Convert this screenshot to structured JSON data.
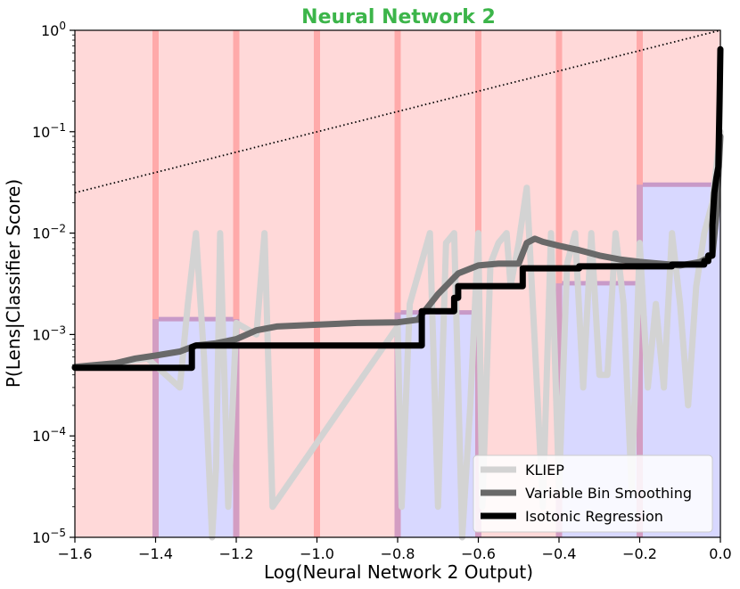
{
  "chart_data": {
    "type": "line",
    "title": "Neural Network 2",
    "xlabel": "Log(Neural Network 2 Output)",
    "ylabel": "P(Lens|Classifier Score)",
    "yscale": "log",
    "xlim": [
      -1.6,
      0.0
    ],
    "ylim": [
      1e-05,
      1
    ],
    "grid": false,
    "legend_position": "bottom-right",
    "x_ticks": [
      {
        "value": -1.6,
        "label": "−1.6"
      },
      {
        "value": -1.4,
        "label": "−1.4"
      },
      {
        "value": -1.2,
        "label": "−1.2"
      },
      {
        "value": -1.0,
        "label": "−1.0"
      },
      {
        "value": -0.8,
        "label": "−0.8"
      },
      {
        "value": -0.6,
        "label": "−0.6"
      },
      {
        "value": -0.4,
        "label": "−0.4"
      },
      {
        "value": -0.2,
        "label": "−0.2"
      },
      {
        "value": 0.0,
        "label": "0.0"
      }
    ],
    "y_ticks": [
      {
        "value": 1,
        "base": "10",
        "exp": "0"
      },
      {
        "value": 0.1,
        "base": "10",
        "exp": "−1"
      },
      {
        "value": 0.01,
        "base": "10",
        "exp": "−2"
      },
      {
        "value": 0.001,
        "base": "10",
        "exp": "−3"
      },
      {
        "value": 0.0001,
        "base": "10",
        "exp": "−4"
      },
      {
        "value": 1e-05,
        "base": "10",
        "exp": "−5"
      }
    ],
    "colors": {
      "title": "#3cb54a",
      "background_red": "#ffd9d9",
      "bin_edge_red": "#ffaaaa",
      "bin_blue": "#d8d8ff",
      "bin_top": "#c89ac8",
      "kliep": "#d3d3d3",
      "variable_bin": "#696969",
      "isotonic": "#000000",
      "reference": "#000000"
    },
    "histogram_bins": [
      {
        "x0": -1.6,
        "x1": -1.4,
        "value": 0
      },
      {
        "x0": -1.4,
        "x1": -1.2,
        "value": 0.00142
      },
      {
        "x0": -1.2,
        "x1": -1.0,
        "value": 0
      },
      {
        "x0": -1.0,
        "x1": -0.8,
        "value": 0
      },
      {
        "x0": -0.8,
        "x1": -0.6,
        "value": 0.00165
      },
      {
        "x0": -0.6,
        "x1": -0.4,
        "value": 0
      },
      {
        "x0": -0.4,
        "x1": -0.2,
        "value": 0.0032
      },
      {
        "x0": -0.2,
        "x1": 0.0,
        "value": 0.03
      }
    ],
    "reference_line": {
      "style": "dotted",
      "x": [
        -1.6,
        0.0
      ],
      "y": [
        0.025,
        1.0
      ]
    },
    "series": [
      {
        "name": "KLIEP",
        "points": [
          [
            -1.6,
            0.00048
          ],
          [
            -1.5,
            0.00052
          ],
          [
            -1.42,
            0.00058
          ],
          [
            -1.34,
            0.0003
          ],
          [
            -1.32,
            0.002
          ],
          [
            -1.3,
            0.01
          ],
          [
            -1.28,
            0.0006
          ],
          [
            -1.26,
            1e-05
          ],
          [
            -1.25,
            5e-05
          ],
          [
            -1.24,
            0.01
          ],
          [
            -1.22,
            2e-05
          ],
          [
            -1.2,
            0.0013
          ],
          [
            -1.15,
            0.001
          ],
          [
            -1.13,
            0.01
          ],
          [
            -1.11,
            2e-05
          ],
          [
            -0.8,
            0.0012
          ],
          [
            -0.79,
            2e-05
          ],
          [
            -0.77,
            0.002
          ],
          [
            -0.72,
            0.01
          ],
          [
            -0.7,
            2e-05
          ],
          [
            -0.68,
            0.008
          ],
          [
            -0.66,
            0.01
          ],
          [
            -0.64,
            1e-05
          ],
          [
            -0.62,
            0.0002
          ],
          [
            -0.6,
            0.01
          ],
          [
            -0.59,
            2e-05
          ],
          [
            -0.57,
            0.005
          ],
          [
            -0.55,
            0.008
          ],
          [
            -0.53,
            0.01
          ],
          [
            -0.52,
            0.003
          ],
          [
            -0.5,
            0.008
          ],
          [
            -0.48,
            0.028
          ],
          [
            -0.46,
            0.0008
          ],
          [
            -0.44,
            2e-05
          ],
          [
            -0.42,
            0.01
          ],
          [
            -0.4,
            3e-05
          ],
          [
            -0.38,
            0.005
          ],
          [
            -0.36,
            0.01
          ],
          [
            -0.34,
            0.0003
          ],
          [
            -0.32,
            0.01
          ],
          [
            -0.3,
            0.0004
          ],
          [
            -0.28,
            0.0004
          ],
          [
            -0.26,
            0.01
          ],
          [
            -0.24,
            0.002
          ],
          [
            -0.22,
            3e-05
          ],
          [
            -0.2,
            0.008
          ],
          [
            -0.18,
            0.0003
          ],
          [
            -0.16,
            0.002
          ],
          [
            -0.14,
            0.0003
          ],
          [
            -0.12,
            0.01
          ],
          [
            -0.1,
            0.002
          ],
          [
            -0.08,
            0.0002
          ],
          [
            -0.06,
            0.003
          ],
          [
            -0.04,
            0.01
          ],
          [
            -0.02,
            0.02
          ],
          [
            0.0,
            0.1
          ]
        ]
      },
      {
        "name": "Variable Bin Smoothing",
        "points": [
          [
            -1.6,
            0.00048
          ],
          [
            -1.5,
            0.00052
          ],
          [
            -1.45,
            0.00058
          ],
          [
            -1.4,
            0.00062
          ],
          [
            -1.34,
            0.00068
          ],
          [
            -1.3,
            0.00078
          ],
          [
            -1.25,
            0.00082
          ],
          [
            -1.2,
            0.0009
          ],
          [
            -1.15,
            0.0011
          ],
          [
            -1.1,
            0.0012
          ],
          [
            -1.0,
            0.00125
          ],
          [
            -0.9,
            0.0013
          ],
          [
            -0.8,
            0.00132
          ],
          [
            -0.75,
            0.0014
          ],
          [
            -0.7,
            0.0025
          ],
          [
            -0.65,
            0.004
          ],
          [
            -0.6,
            0.0048
          ],
          [
            -0.55,
            0.005
          ],
          [
            -0.5,
            0.005
          ],
          [
            -0.48,
            0.008
          ],
          [
            -0.46,
            0.0088
          ],
          [
            -0.44,
            0.0082
          ],
          [
            -0.4,
            0.0075
          ],
          [
            -0.35,
            0.0068
          ],
          [
            -0.3,
            0.006
          ],
          [
            -0.25,
            0.0055
          ],
          [
            -0.2,
            0.0052
          ],
          [
            -0.1,
            0.0048
          ],
          [
            -0.05,
            0.0052
          ],
          [
            -0.02,
            0.006
          ],
          [
            -0.01,
            0.015
          ],
          [
            0.0,
            0.09
          ]
        ]
      },
      {
        "name": "Isotonic Regression",
        "points": [
          [
            -1.6,
            0.00047
          ],
          [
            -1.31,
            0.00047
          ],
          [
            -1.31,
            0.00075
          ],
          [
            -1.3,
            0.00078
          ],
          [
            -0.74,
            0.00078
          ],
          [
            -0.74,
            0.0017
          ],
          [
            -0.66,
            0.0017
          ],
          [
            -0.66,
            0.0023
          ],
          [
            -0.65,
            0.0023
          ],
          [
            -0.65,
            0.003
          ],
          [
            -0.49,
            0.003
          ],
          [
            -0.49,
            0.0045
          ],
          [
            -0.35,
            0.0045
          ],
          [
            -0.35,
            0.0047
          ],
          [
            -0.12,
            0.0047
          ],
          [
            -0.12,
            0.0049
          ],
          [
            -0.04,
            0.0049
          ],
          [
            -0.04,
            0.0053
          ],
          [
            -0.03,
            0.0053
          ],
          [
            -0.03,
            0.006
          ],
          [
            -0.02,
            0.006
          ],
          [
            -0.02,
            0.012
          ],
          [
            -0.015,
            0.025
          ],
          [
            -0.01,
            0.035
          ],
          [
            -0.005,
            0.045
          ],
          [
            -0.002,
            0.2
          ],
          [
            0.0,
            0.65
          ]
        ]
      }
    ]
  }
}
